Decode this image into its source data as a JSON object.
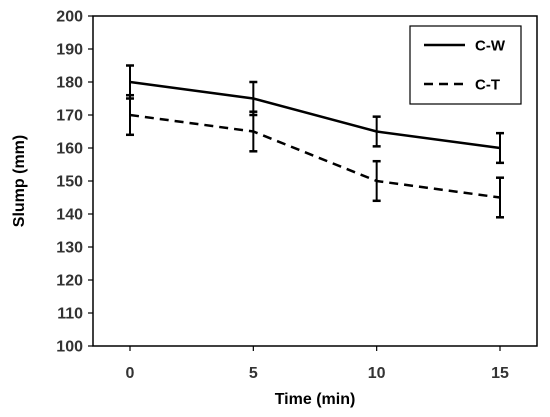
{
  "chart_data": {
    "type": "line",
    "xlabel": "Time (min)",
    "ylabel": "Slump (mm)",
    "x": [
      0,
      5,
      10,
      15
    ],
    "ylim": [
      100,
      200
    ],
    "yticks": [
      100,
      110,
      120,
      130,
      140,
      150,
      160,
      170,
      180,
      190,
      200
    ],
    "grid": false,
    "legend": "top-right",
    "series": [
      {
        "name": "C-W",
        "style": "solid",
        "color": "#000000",
        "values": [
          180,
          175,
          165,
          160
        ],
        "errors": [
          5,
          5,
          4.5,
          4.5
        ]
      },
      {
        "name": "C-T",
        "style": "dashed",
        "color": "#000000",
        "values": [
          170,
          165,
          150,
          145
        ],
        "errors": [
          6,
          6,
          6,
          6
        ]
      }
    ]
  }
}
